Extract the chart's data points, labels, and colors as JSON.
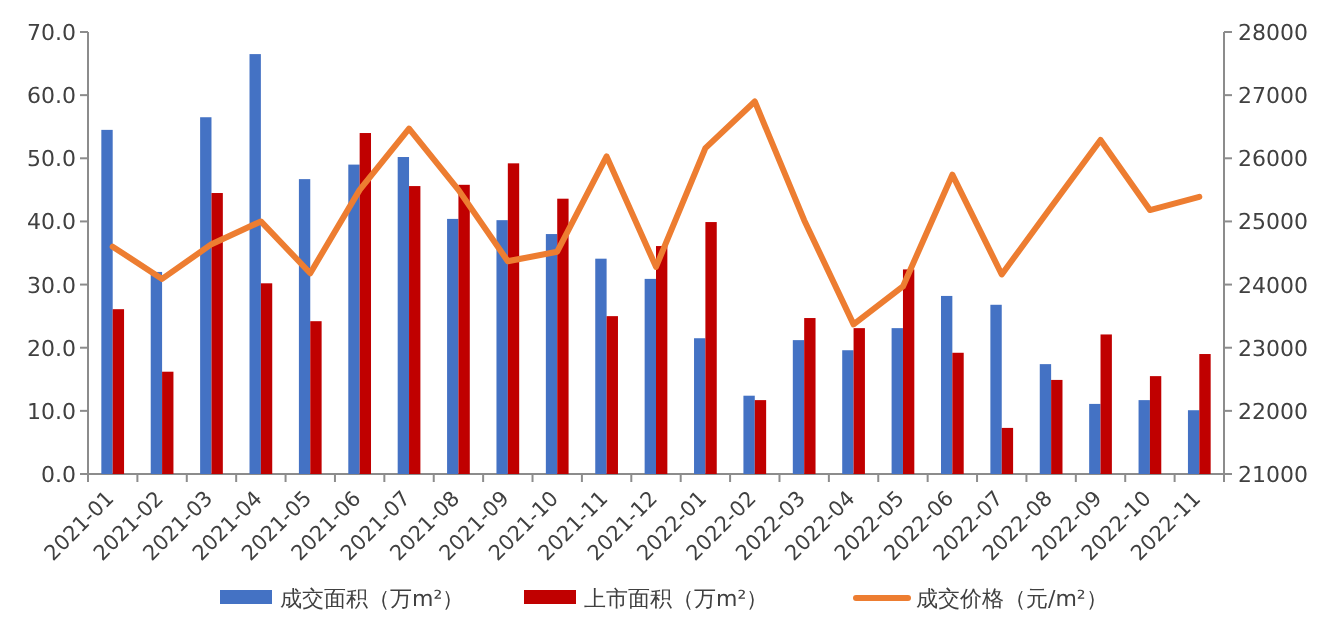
{
  "chart_data": {
    "type": "bar",
    "categories": [
      "2021-01",
      "2021-02",
      "2021-03",
      "2021-04",
      "2021-05",
      "2021-06",
      "2021-07",
      "2021-08",
      "2021-09",
      "2021-10",
      "2021-11",
      "2021-12",
      "2022-01",
      "2022-02",
      "2022-03",
      "2022-04",
      "2022-05",
      "2022-06",
      "2022-07",
      "2022-08",
      "2022-09",
      "2022-10",
      "2022-11"
    ],
    "series": [
      {
        "name": "成交面积（万m²）",
        "color": "#4472c4",
        "values": [
          54.5,
          32.0,
          56.5,
          66.5,
          46.7,
          49.0,
          50.2,
          40.4,
          40.2,
          38.0,
          34.1,
          30.9,
          21.5,
          12.4,
          21.2,
          19.6,
          23.1,
          28.2,
          26.8,
          17.4,
          11.1,
          11.7,
          10.1
        ]
      },
      {
        "name": "上市面积（万m²）",
        "color": "#c00000",
        "values": [
          26.1,
          16.2,
          44.5,
          30.2,
          24.2,
          54.0,
          45.6,
          45.8,
          49.2,
          43.6,
          25.0,
          36.1,
          39.9,
          11.7,
          24.7,
          23.1,
          32.4,
          19.2,
          7.3,
          14.9,
          22.1,
          15.5,
          19.0
        ]
      },
      {
        "name": "成交价格（元/m²）",
        "type": "line",
        "axis": "y2",
        "color": "#ed7d31",
        "values": [
          24600,
          24090,
          24640,
          25000,
          24180,
          25500,
          26470,
          25500,
          24370,
          24520,
          26030,
          24280,
          26160,
          26900,
          25020,
          23370,
          23970,
          25740,
          24160,
          25230,
          26290,
          25180,
          25390
        ]
      }
    ],
    "ylim": [
      0,
      70
    ],
    "yticks": [
      {
        "value": 0,
        "label": "0.0"
      },
      {
        "value": 10,
        "label": "10.0"
      },
      {
        "value": 20,
        "label": "20.0"
      },
      {
        "value": 30,
        "label": "30.0"
      },
      {
        "value": 40,
        "label": "40.0"
      },
      {
        "value": 50,
        "label": "50.0"
      },
      {
        "value": 60,
        "label": "60.0"
      },
      {
        "value": 70,
        "label": "70.0"
      }
    ],
    "y2lim": [
      21000,
      28000
    ],
    "y2ticks": [
      21000,
      22000,
      23000,
      24000,
      25000,
      26000,
      27000,
      28000
    ],
    "grid": false,
    "legend": "bottom",
    "marker": "none",
    "line_style": "solid"
  }
}
